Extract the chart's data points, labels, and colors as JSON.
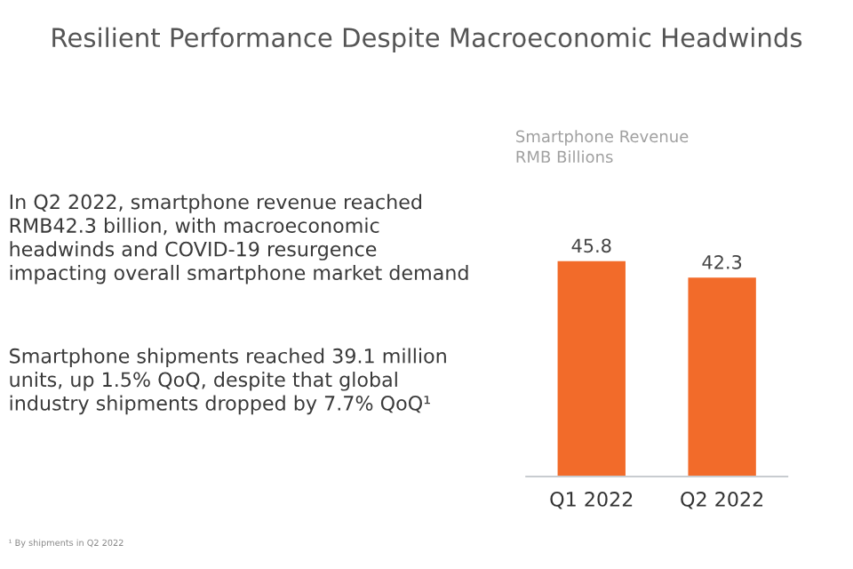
{
  "chart_data": {
    "type": "bar",
    "title": "Resilient Performance Despite Macroeconomic Headwinds",
    "subtitle": "Smartphone Revenue\nRMB Billions",
    "categories": [
      "Q1 2022",
      "Q2 2022"
    ],
    "values": [
      45.8,
      42.3
    ],
    "color": "#f26b2a",
    "data_labels": true,
    "tick_labels": "x",
    "grid": false,
    "annotations": [
      "In Q2 2022, smartphone revenue reached\nRMB42.3 billion, with macroeconomic\nheadwinds and COVID-19 resurgence\nimpacting overall smartphone market demand",
      "Smartphone shipments reached 39.1 million\nunits, up 1.5% QoQ, despite that global\nindustry shipments dropped by 7.7% QoQ¹",
      "¹ By shipments in Q2 2022"
    ]
  }
}
